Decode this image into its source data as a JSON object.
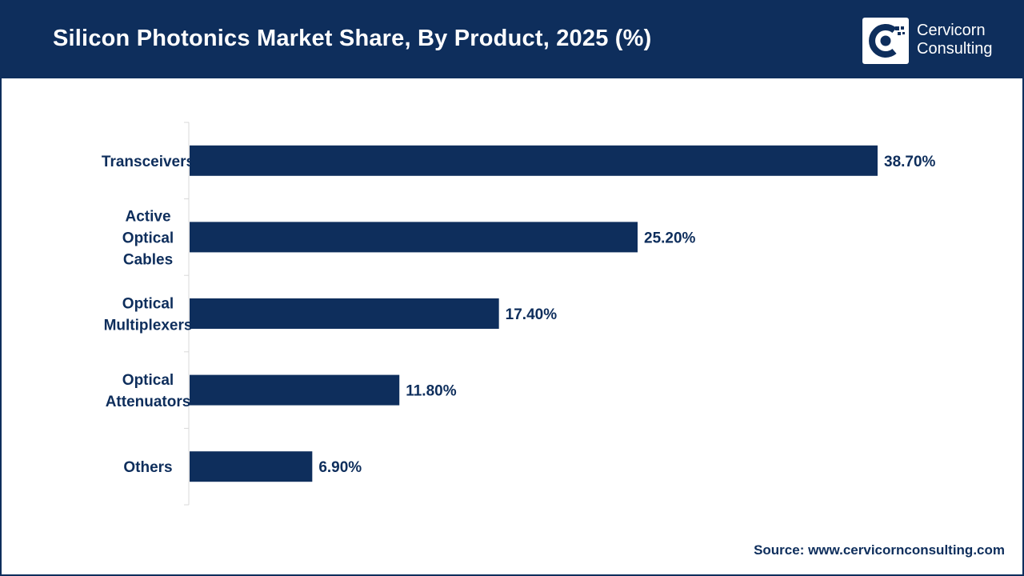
{
  "header": {
    "title": "Silicon Photonics Market Share, By Product, 2025 (%)"
  },
  "logo": {
    "line1": "Cervicorn",
    "line2": "Consulting"
  },
  "source": "Source: www.cervicornconsulting.com",
  "colors": {
    "brand": "#0e2e5c",
    "bar": "#0e2e5c",
    "axis": "#d9d9d9",
    "background": "#ffffff"
  },
  "chart_data": {
    "type": "bar",
    "orientation": "horizontal",
    "categories": [
      [
        "Transceivers"
      ],
      [
        "Active",
        "Optical",
        "Cables"
      ],
      [
        "Optical",
        "Multiplexers"
      ],
      [
        "Optical",
        "Attenuators"
      ],
      [
        "Others"
      ]
    ],
    "values": [
      38.7,
      25.2,
      17.4,
      11.8,
      6.9
    ],
    "value_labels": [
      "38.70%",
      "25.20%",
      "17.40%",
      "11.80%",
      "6.90%"
    ],
    "xlim": [
      0,
      45
    ],
    "grid": false,
    "legend": "none"
  }
}
